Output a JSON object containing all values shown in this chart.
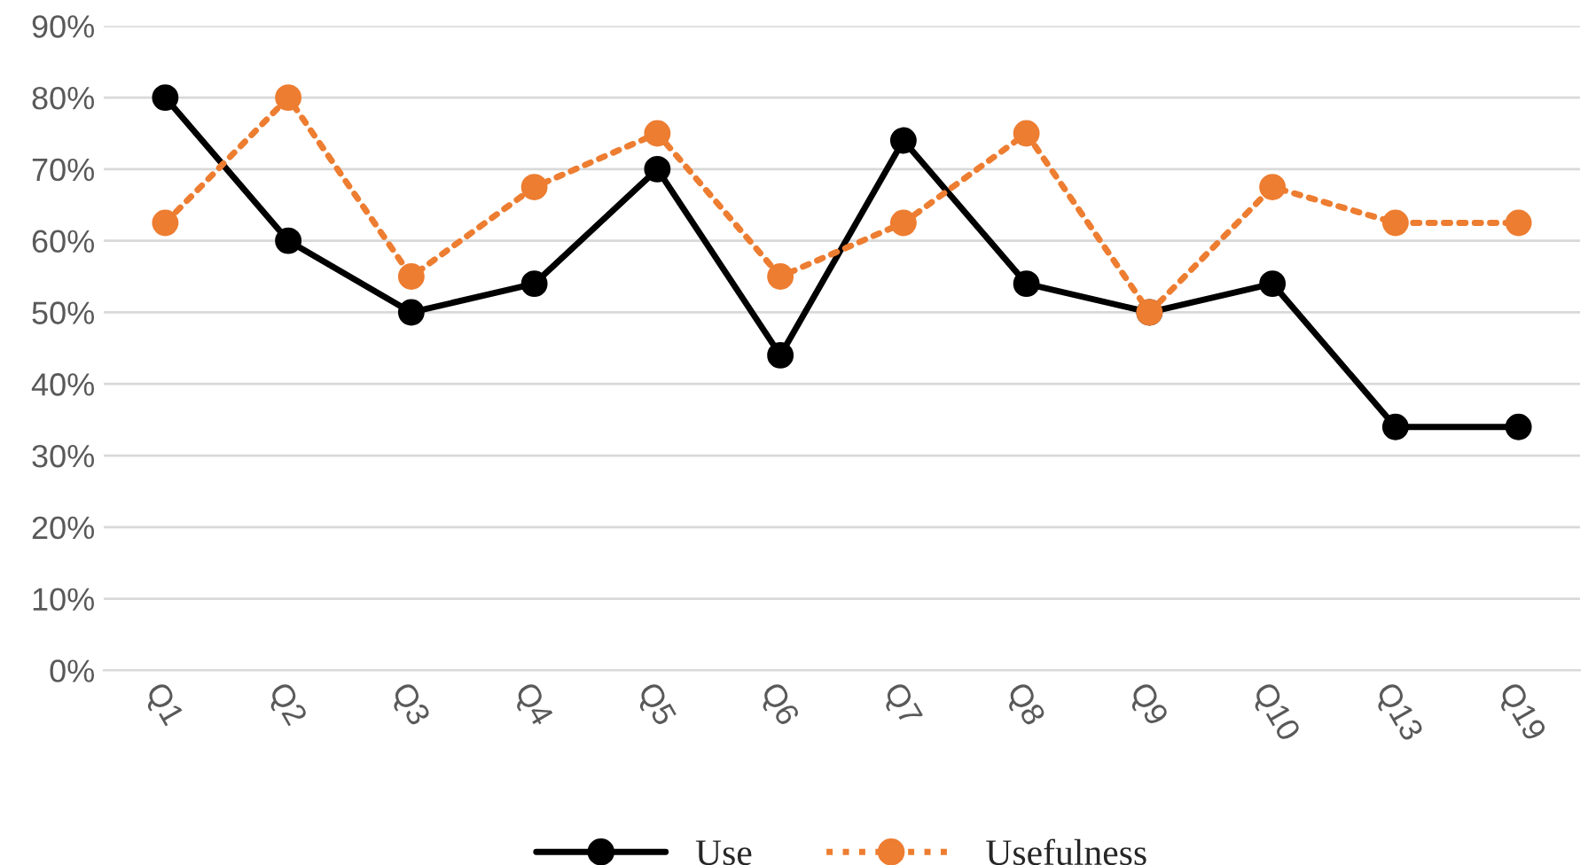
{
  "chart_data": {
    "type": "line",
    "categories": [
      "Q1",
      "Q2",
      "Q3",
      "Q4",
      "Q5",
      "Q6",
      "Q7",
      "Q8",
      "Q9",
      "Q10",
      "Q13",
      "Q19"
    ],
    "series": [
      {
        "name": "Use",
        "color": "#000000",
        "line_style": "solid",
        "values": [
          80,
          60,
          50,
          54,
          70,
          44,
          74,
          54,
          50,
          54,
          34,
          34
        ]
      },
      {
        "name": "Usefulness",
        "color": "#ed7d31",
        "line_style": "dotted",
        "values": [
          62.5,
          80,
          55,
          67.5,
          75,
          55,
          62.5,
          75,
          50,
          67.5,
          62.5,
          62.5
        ]
      }
    ],
    "marker": "circle",
    "ylim": [
      0,
      90
    ],
    "yticks": [
      {
        "value": 0,
        "label": "0%"
      },
      {
        "value": 10,
        "label": "10%"
      },
      {
        "value": 20,
        "label": "20%"
      },
      {
        "value": 30,
        "label": "30%"
      },
      {
        "value": 40,
        "label": "40%"
      },
      {
        "value": 50,
        "label": "50%"
      },
      {
        "value": 60,
        "label": "60%"
      },
      {
        "value": 70,
        "label": "70%"
      },
      {
        "value": 80,
        "label": "80%"
      },
      {
        "value": 90,
        "label": "90%"
      }
    ],
    "grid": "y",
    "legend": "bottom"
  }
}
